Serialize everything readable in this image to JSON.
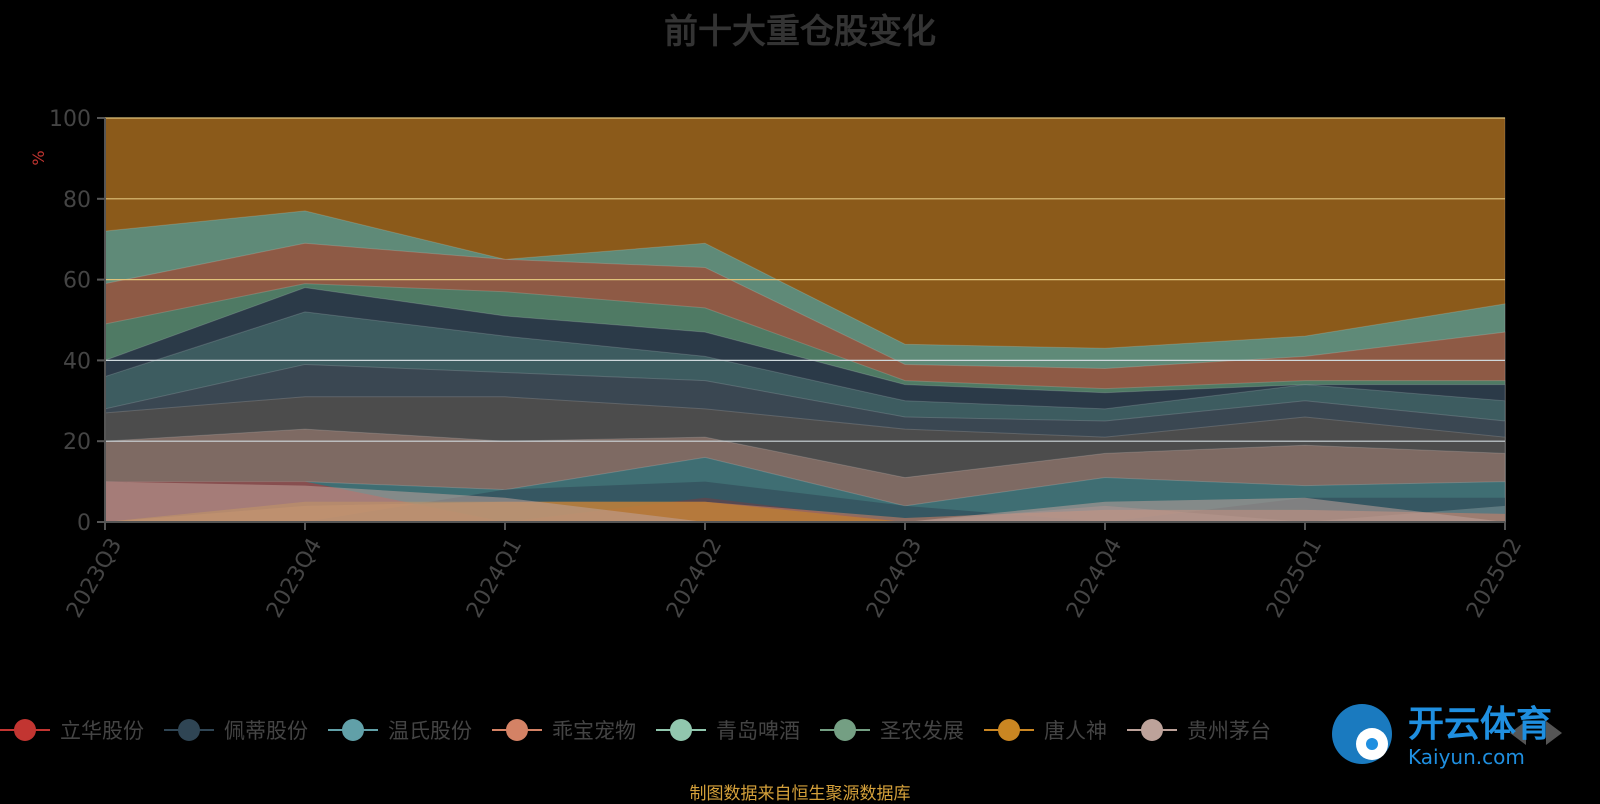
{
  "chart_data": {
    "type": "area",
    "title": "前十大重仓股变化",
    "ylabel": "%",
    "ylim": [
      0,
      100
    ],
    "yticks": [
      0,
      20,
      40,
      60,
      80,
      100
    ],
    "categories": [
      "2023Q3",
      "2023Q4",
      "2024Q1",
      "2024Q2",
      "2024Q3",
      "2024Q4",
      "2025Q1",
      "2025Q2"
    ],
    "stacked": true,
    "grid": true,
    "legend_position": "bottom",
    "series": [
      {
        "name": "立华股份",
        "color": "#c23531",
        "values": [
          10,
          10,
          0,
          6,
          0,
          4,
          0,
          4
        ]
      },
      {
        "name": "佩蒂股份",
        "color": "#2f4554",
        "values": [
          0,
          0,
          8,
          10,
          4,
          0,
          6,
          6
        ]
      },
      {
        "name": "温氏股份",
        "color": "#61a0a8",
        "values": [
          0,
          0,
          0,
          0,
          0,
          4,
          0,
          4
        ]
      },
      {
        "name": "乖宝宠物",
        "color": "#d48265",
        "values": [
          0,
          4,
          5,
          5,
          1,
          3,
          3,
          2
        ]
      },
      {
        "name": "青岛啤酒",
        "color": "#91c7ae",
        "values": [
          0,
          0,
          0,
          0,
          0,
          0,
          0,
          0
        ]
      },
      {
        "name": "圣农发展",
        "color": "#749f83",
        "values": [
          0,
          0,
          0,
          0,
          0,
          0,
          0,
          0
        ]
      },
      {
        "name": "唐人神",
        "color": "#ca8622",
        "values": [
          0,
          5,
          5,
          5,
          0,
          0,
          0,
          0
        ]
      },
      {
        "name": "贵州茅台",
        "color": "#bda29a",
        "values": [
          10,
          9,
          6,
          0,
          0,
          5,
          6,
          0
        ]
      }
    ],
    "background_series": [
      {
        "color": "#8b5a1a",
        "values": [
          100,
          100,
          100,
          100,
          100,
          100,
          100,
          100
        ]
      },
      {
        "color": "#5f8a78",
        "values": [
          72,
          77,
          65,
          69,
          44,
          43,
          46,
          54
        ]
      },
      {
        "color": "#8e5a45",
        "values": [
          59,
          69,
          65,
          63,
          39,
          38,
          41,
          47
        ]
      },
      {
        "color": "#4f7a64",
        "values": [
          49,
          59,
          57,
          53,
          35,
          33,
          35,
          35
        ]
      },
      {
        "color": "#2b3a48",
        "values": [
          40,
          58,
          51,
          47,
          34,
          32,
          34,
          34
        ]
      },
      {
        "color": "#3d5c60",
        "values": [
          36,
          52,
          46,
          41,
          30,
          28,
          34,
          30
        ]
      },
      {
        "color": "#3a4752",
        "values": [
          28,
          39,
          37,
          35,
          26,
          25,
          30,
          25
        ]
      },
      {
        "color": "#4c4c4c",
        "values": [
          27,
          31,
          31,
          28,
          23,
          21,
          26,
          21
        ]
      },
      {
        "color": "#7e6a63",
        "values": [
          20,
          23,
          20,
          21,
          11,
          17,
          19,
          17
        ]
      },
      {
        "color": "#3f6e73",
        "values": [
          10,
          10,
          8,
          16,
          4,
          11,
          9,
          10
        ]
      }
    ]
  },
  "legend": {
    "items": [
      {
        "label": "立华股份",
        "color": "#c23531"
      },
      {
        "label": "佩蒂股份",
        "color": "#2f4554"
      },
      {
        "label": "温氏股份",
        "color": "#61a0a8"
      },
      {
        "label": "乖宝宠物",
        "color": "#d48265"
      },
      {
        "label": "青岛啤酒",
        "color": "#91c7ae"
      },
      {
        "label": "圣农发展",
        "color": "#749f83"
      },
      {
        "label": "唐人神",
        "color": "#ca8622"
      },
      {
        "label": "贵州茅台",
        "color": "#bda29a"
      }
    ]
  },
  "footer": {
    "note": "制图数据来自恒生聚源数据库"
  },
  "watermark": {
    "brand": "开云体育",
    "domain": "Kaiyun.com"
  }
}
